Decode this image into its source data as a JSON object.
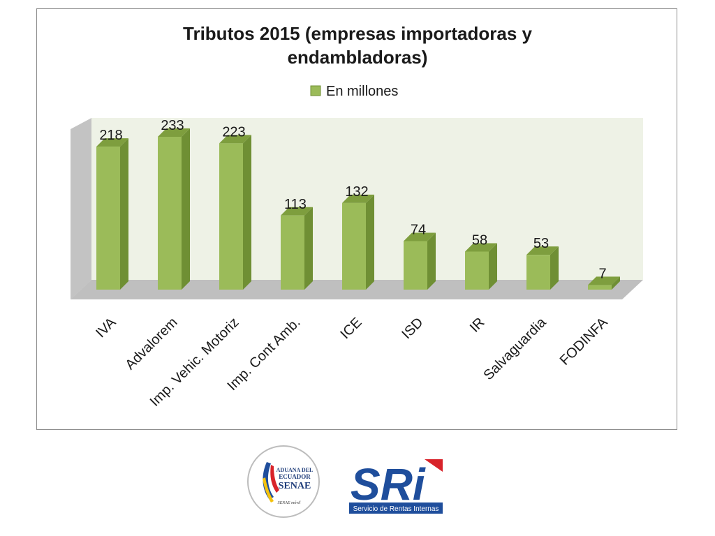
{
  "chart_data": {
    "type": "bar",
    "title": "Tributos 2015 (empresas importadoras y endambladoras)",
    "title_lines": [
      "Tributos 2015 (empresas importadoras y",
      "endambladoras)"
    ],
    "categories": [
      "IVA",
      "Advalorem",
      "Imp. Vehic. Motoriz",
      "Imp. Cont Amb.",
      "ICE",
      "ISD",
      "IR",
      "Salvaguardia",
      "FODINFA"
    ],
    "series": [
      {
        "name": "En millones",
        "values": [
          218,
          233,
          223,
          113,
          132,
          74,
          58,
          53,
          7
        ]
      }
    ],
    "ylim": [
      0,
      250
    ],
    "grid": false,
    "legend_position": "top",
    "data_labels": true,
    "style": "3d",
    "colors": {
      "bar_front": "#9bbb59",
      "bar_side": "#6f8f34",
      "bar_top": "#7e9e3e",
      "back_wall": "#eef2e6",
      "side_wall": "#c3c3c3",
      "floor": "#bfbfbf"
    }
  },
  "logos": {
    "senae": {
      "lines": [
        "ADUANA DEL",
        "ECUADOR",
        "SENAE"
      ],
      "tagline": "SENAE móvil"
    },
    "sri": {
      "mark": "SRi",
      "tagline": "Servicio de Rentas Internas",
      "colors": {
        "blue": "#1f4e9c",
        "red": "#d8232a"
      }
    }
  }
}
